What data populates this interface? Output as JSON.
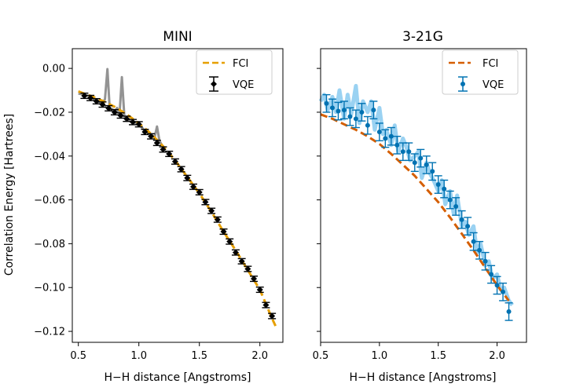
{
  "figure": {
    "ylabel": "Correlation Energy [Hartrees]",
    "shared_y": true
  },
  "chart_data": [
    {
      "type": "line",
      "title": "MINI",
      "xlabel": "H−H distance [Angstroms]",
      "ylabel": "Correlation Energy [Hartrees]",
      "xlim": [
        0.45,
        2.19
      ],
      "ylim": [
        -0.125,
        0.009
      ],
      "xticks": [
        0.5,
        1.0,
        1.5,
        2.0
      ],
      "xtick_labels": [
        "0.5",
        "1.0",
        "1.5",
        "2.0"
      ],
      "yticks": [
        0.0,
        -0.02,
        -0.04,
        -0.06,
        -0.08,
        -0.1,
        -0.12
      ],
      "ytick_labels": [
        "0.00",
        "−0.02",
        "−0.04",
        "−0.06",
        "−0.08",
        "−0.10",
        "−0.12"
      ],
      "grid": false,
      "legend": {
        "location": "top-right",
        "entries": [
          "FCI",
          "VQE"
        ]
      },
      "series": [
        {
          "name": "FCI",
          "style": "dashed",
          "color": "#e69f00",
          "x": [
            0.5,
            0.6,
            0.7,
            0.8,
            0.9,
            1.0,
            1.1,
            1.2,
            1.3,
            1.4,
            1.5,
            1.6,
            1.7,
            1.8,
            1.9,
            2.0,
            2.1,
            2.14
          ],
          "y": [
            -0.0105,
            -0.0125,
            -0.0148,
            -0.0175,
            -0.021,
            -0.025,
            -0.0298,
            -0.0355,
            -0.042,
            -0.0495,
            -0.057,
            -0.0655,
            -0.0745,
            -0.083,
            -0.092,
            -0.101,
            -0.114,
            -0.1188
          ]
        },
        {
          "name": "VQE",
          "style": "errorbar",
          "marker": "diamond",
          "color": "#000000",
          "x": [
            0.55,
            0.6,
            0.65,
            0.7,
            0.75,
            0.8,
            0.85,
            0.9,
            0.95,
            1.0,
            1.05,
            1.1,
            1.15,
            1.2,
            1.25,
            1.3,
            1.35,
            1.4,
            1.45,
            1.5,
            1.55,
            1.6,
            1.65,
            1.7,
            1.75,
            1.8,
            1.85,
            1.9,
            1.95,
            2.0,
            2.05,
            2.1
          ],
          "y": [
            -0.0125,
            -0.0135,
            -0.015,
            -0.0165,
            -0.0182,
            -0.02,
            -0.0215,
            -0.023,
            -0.0245,
            -0.0255,
            -0.029,
            -0.031,
            -0.034,
            -0.037,
            -0.039,
            -0.0425,
            -0.046,
            -0.05,
            -0.054,
            -0.0565,
            -0.061,
            -0.065,
            -0.069,
            -0.0745,
            -0.079,
            -0.084,
            -0.088,
            -0.0915,
            -0.096,
            -0.101,
            -0.108,
            -0.113
          ],
          "yerr": [
            0.0012,
            0.0012,
            0.0012,
            0.0012,
            0.0012,
            0.0012,
            0.0012,
            0.0012,
            0.0012,
            0.0012,
            0.0012,
            0.0012,
            0.0012,
            0.0012,
            0.0012,
            0.0012,
            0.0012,
            0.0012,
            0.0012,
            0.0012,
            0.0012,
            0.0012,
            0.0012,
            0.0012,
            0.0012,
            0.0012,
            0.0012,
            0.0012,
            0.0012,
            0.0012,
            0.0012,
            0.0012
          ]
        }
      ],
      "noise_band": {
        "color": "#808080",
        "x": [
          0.5,
          0.55,
          0.6,
          0.65,
          0.7,
          0.72,
          0.74,
          0.76,
          0.78,
          0.8,
          0.82,
          0.84,
          0.86,
          0.88,
          0.9,
          0.95,
          1.0,
          1.05,
          1.1,
          1.13,
          1.15,
          1.17,
          1.2
        ],
        "y": [
          -0.0115,
          -0.012,
          -0.013,
          -0.0148,
          -0.016,
          -0.014,
          -0.0003,
          -0.019,
          -0.0185,
          -0.02,
          -0.018,
          -0.021,
          -0.004,
          -0.0215,
          -0.0235,
          -0.0245,
          -0.0255,
          -0.0285,
          -0.03,
          -0.0315,
          -0.0265,
          -0.033,
          -0.036
        ]
      }
    },
    {
      "type": "line",
      "title": "3-21G",
      "xlabel": "H−H distance [Angstroms]",
      "xlim": [
        0.5,
        2.25
      ],
      "ylim": [
        -0.125,
        0.009
      ],
      "xticks": [
        0.5,
        1.0,
        1.5,
        2.0
      ],
      "xtick_labels": [
        "0.5",
        "1.0",
        "1.5",
        "2.0"
      ],
      "grid": false,
      "legend": {
        "location": "top-right",
        "entries": [
          "FCI",
          "VQE"
        ]
      },
      "series": [
        {
          "name": "FCI",
          "style": "dashed",
          "color": "#d55e00",
          "x": [
            0.5,
            0.6,
            0.7,
            0.8,
            0.9,
            1.0,
            1.1,
            1.2,
            1.3,
            1.4,
            1.5,
            1.6,
            1.7,
            1.8,
            1.9,
            2.0,
            2.1
          ],
          "y": [
            -0.021,
            -0.023,
            -0.0255,
            -0.028,
            -0.031,
            -0.0345,
            -0.039,
            -0.044,
            -0.049,
            -0.055,
            -0.061,
            -0.068,
            -0.0755,
            -0.083,
            -0.091,
            -0.099,
            -0.106
          ]
        },
        {
          "name": "VQE",
          "style": "errorbar",
          "marker": "circle",
          "color": "#0072b2",
          "x": [
            0.55,
            0.6,
            0.65,
            0.7,
            0.75,
            0.8,
            0.85,
            0.9,
            0.95,
            1.0,
            1.05,
            1.1,
            1.15,
            1.2,
            1.25,
            1.3,
            1.35,
            1.4,
            1.45,
            1.5,
            1.55,
            1.6,
            1.65,
            1.7,
            1.75,
            1.8,
            1.85,
            1.9,
            1.95,
            2.0,
            2.05,
            2.1
          ],
          "y": [
            -0.016,
            -0.018,
            -0.0195,
            -0.019,
            -0.022,
            -0.023,
            -0.02,
            -0.026,
            -0.019,
            -0.029,
            -0.032,
            -0.031,
            -0.035,
            -0.038,
            -0.038,
            -0.043,
            -0.041,
            -0.044,
            -0.047,
            -0.053,
            -0.055,
            -0.06,
            -0.063,
            -0.069,
            -0.072,
            -0.079,
            -0.083,
            -0.088,
            -0.094,
            -0.099,
            -0.102,
            -0.111
          ],
          "yerr": [
            0.004,
            0.004,
            0.004,
            0.004,
            0.004,
            0.004,
            0.004,
            0.004,
            0.004,
            0.004,
            0.004,
            0.004,
            0.004,
            0.004,
            0.004,
            0.004,
            0.004,
            0.004,
            0.004,
            0.004,
            0.004,
            0.004,
            0.004,
            0.004,
            0.004,
            0.004,
            0.004,
            0.004,
            0.004,
            0.004,
            0.004,
            0.004
          ]
        }
      ],
      "noise_band": {
        "color": "#56b4e9",
        "x": [
          0.5,
          0.53,
          0.56,
          0.6,
          0.63,
          0.66,
          0.7,
          0.73,
          0.76,
          0.8,
          0.83,
          0.86,
          0.9,
          0.93,
          0.96,
          1.0,
          1.03,
          1.06,
          1.1,
          1.13,
          1.16,
          1.2,
          1.23,
          1.26,
          1.3,
          1.33,
          1.36,
          1.4,
          1.43,
          1.46,
          1.5,
          1.53,
          1.56,
          1.6,
          1.63,
          1.66,
          1.7,
          1.73,
          1.76,
          1.8,
          1.83,
          1.86,
          1.9,
          1.93,
          1.96,
          2.0,
          2.03,
          2.06,
          2.1,
          2.13
        ],
        "y": [
          -0.015,
          -0.012,
          -0.019,
          -0.013,
          -0.02,
          -0.01,
          -0.023,
          -0.012,
          -0.021,
          -0.008,
          -0.025,
          -0.015,
          -0.02,
          -0.015,
          -0.028,
          -0.018,
          -0.03,
          -0.028,
          -0.035,
          -0.026,
          -0.038,
          -0.032,
          -0.036,
          -0.042,
          -0.04,
          -0.038,
          -0.05,
          -0.043,
          -0.048,
          -0.051,
          -0.056,
          -0.051,
          -0.062,
          -0.056,
          -0.066,
          -0.058,
          -0.072,
          -0.07,
          -0.076,
          -0.072,
          -0.084,
          -0.08,
          -0.09,
          -0.088,
          -0.096,
          -0.094,
          -0.101,
          -0.1,
          -0.106,
          -0.108
        ]
      }
    }
  ]
}
